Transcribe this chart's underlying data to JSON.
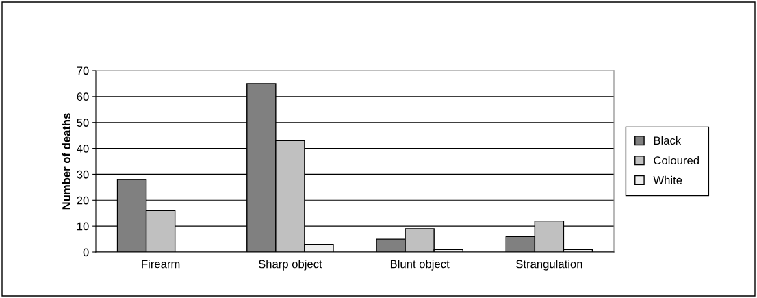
{
  "chart_data": {
    "type": "bar",
    "ylabel": "Number of deaths",
    "categories": [
      "Firearm",
      "Sharp object",
      "Blunt object",
      "Strangulation"
    ],
    "series": [
      {
        "name": "Black",
        "color": "#808080",
        "values": [
          28,
          65,
          5,
          6
        ]
      },
      {
        "name": "Coloured",
        "color": "#c0c0c0",
        "values": [
          16,
          43,
          9,
          12
        ]
      },
      {
        "name": "White",
        "color": "#eeeeee",
        "values": [
          null,
          3,
          1,
          1
        ]
      }
    ],
    "ylim": [
      0,
      70
    ],
    "yticks": [
      0,
      10,
      20,
      30,
      40,
      50,
      60,
      70
    ],
    "grid": "y",
    "legend": "right"
  }
}
